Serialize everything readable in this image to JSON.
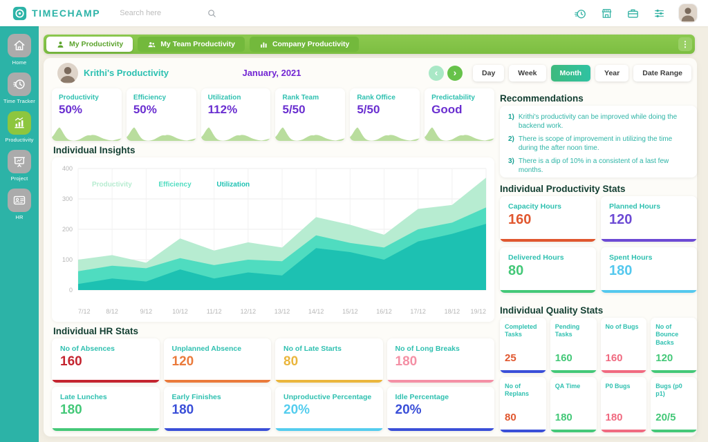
{
  "topbar": {
    "logo_text": "TIMECHAMP",
    "search_placeholder": "Search here",
    "icons": [
      "timer-icon",
      "store-icon",
      "briefcase-icon",
      "sliders-icon"
    ]
  },
  "sidebar": {
    "items": [
      {
        "label": "Home",
        "icon": "home",
        "active": false
      },
      {
        "label": "Time Tracker",
        "icon": "clock",
        "active": false
      },
      {
        "label": "Productivity",
        "icon": "chart",
        "active": true
      },
      {
        "label": "Project",
        "icon": "board",
        "active": false
      },
      {
        "label": "HR",
        "icon": "idcard",
        "active": false
      }
    ]
  },
  "tabs": {
    "items": [
      {
        "label": "My Productivity",
        "icon": "person",
        "active": true
      },
      {
        "label": "My Team Productivity",
        "icon": "people",
        "active": false
      },
      {
        "label": "Company Productivity",
        "icon": "barchart",
        "active": false
      }
    ]
  },
  "header": {
    "title": "Krithi's Productivity",
    "period": "January, 2021",
    "range_buttons": [
      "Day",
      "Week",
      "Month",
      "Year",
      "Date Range"
    ],
    "active_range": "Month"
  },
  "stat_cards": [
    {
      "label": "Productivity",
      "value": "50%"
    },
    {
      "label": "Efficiency",
      "value": "50%"
    },
    {
      "label": "Utilization",
      "value": "112%"
    },
    {
      "label": "Rank Team",
      "value": "5/50"
    },
    {
      "label": "Rank Office",
      "value": "5/50"
    },
    {
      "label": "Predictability",
      "value": "Good"
    }
  ],
  "sections": {
    "insights": "Individual Insights",
    "hr": "Individual HR Stats",
    "recommendations": "Recommendations",
    "productivity": "Individual Productivity Stats",
    "quality": "Individual Quality Stats"
  },
  "chart_data": {
    "type": "area",
    "title": "Individual Insights",
    "x": [
      "7/12",
      "8/12",
      "9/12",
      "10/12",
      "11/12",
      "12/12",
      "13/12",
      "14/12",
      "15/12",
      "16/12",
      "17/12",
      "18/12",
      "19/12"
    ],
    "series": [
      {
        "name": "Productivity",
        "color": "#b7ecd1",
        "values": [
          100,
          115,
          90,
          170,
          130,
          157,
          140,
          240,
          215,
          182,
          267,
          280,
          370
        ]
      },
      {
        "name": "Efficiency",
        "color": "#4fdcc0",
        "values": [
          62,
          80,
          72,
          105,
          82,
          100,
          95,
          180,
          155,
          140,
          200,
          222,
          272
        ]
      },
      {
        "name": "Utilization",
        "color": "#1dc1b2",
        "values": [
          20,
          38,
          28,
          68,
          38,
          58,
          48,
          138,
          125,
          100,
          160,
          185,
          218
        ]
      }
    ],
    "ylim": [
      0,
      400
    ],
    "yticks": [
      0,
      100,
      200,
      300,
      400
    ],
    "grid": true,
    "legend_position": "top-left"
  },
  "recommendations": [
    {
      "num": "1)",
      "text": "Krithi's productivity can be improved while doing the backend work."
    },
    {
      "num": "2)",
      "text": "There is scope of improvement in utilizing the time during the after noon time."
    },
    {
      "num": "3)",
      "text": "There is a dip of 10% in a consistent of a last few months."
    }
  ],
  "productivity_stats": [
    {
      "label": "Capacity Hours",
      "value": "160",
      "color": "#e0572f"
    },
    {
      "label": "Planned Hours",
      "value": "120",
      "color": "#6c4ad4"
    },
    {
      "label": "Delivered Hours",
      "value": "80",
      "color": "#44c878"
    },
    {
      "label": "Spent Hours",
      "value": "180",
      "color": "#54c8ee"
    }
  ],
  "quality_stats": [
    {
      "label": "Completed Tasks",
      "value": "25",
      "color": "#e0572f",
      "border": "#3a4fd8"
    },
    {
      "label": "Pending Tasks",
      "value": "160",
      "color": "#44c878",
      "border": "#44c878"
    },
    {
      "label": "No of Bugs",
      "value": "160",
      "color": "#f06a80",
      "border": "#f06a80"
    },
    {
      "label": "No of Bounce Backs",
      "value": "120",
      "color": "#44c878",
      "border": "#44c878"
    },
    {
      "label": "No of Replans",
      "value": "80",
      "color": "#e0572f",
      "border": "#3a4fd8"
    },
    {
      "label": "QA Time",
      "value": "180",
      "color": "#44c878",
      "border": "#44c878"
    },
    {
      "label": "P0 Bugs",
      "value": "180",
      "color": "#f06a80",
      "border": "#f06a80"
    },
    {
      "label": "Bugs (p0 p1)",
      "value": "20/5",
      "color": "#44c878",
      "border": "#44c878"
    }
  ],
  "hr_stats": [
    {
      "label": "No of Absences",
      "value": "160",
      "color": "#c4242f"
    },
    {
      "label": "Unplanned Absence",
      "value": "120",
      "color": "#ea7a3b"
    },
    {
      "label": "No of Late Starts",
      "value": "80",
      "color": "#eab63d"
    },
    {
      "label": "No of Long Breaks",
      "value": "180",
      "color": "#f490a5"
    },
    {
      "label": "Late Lunches",
      "value": "180",
      "color": "#44c878"
    },
    {
      "label": "Early Finishes",
      "value": "180",
      "color": "#3a4fd8"
    },
    {
      "label": "Unproductive Percentage",
      "value": "20%",
      "color": "#54cdee"
    },
    {
      "label": "Idle Percentage",
      "value": "20%",
      "color": "#3a4fd8"
    }
  ],
  "colors": {
    "brand_teal": "#2cb3a7",
    "accent_green": "#82c341",
    "value_purple": "#6a2fd0",
    "heading_green": "#123e31",
    "label_teal": "#2fc0b0",
    "sparkline_green": "#a8d584"
  }
}
